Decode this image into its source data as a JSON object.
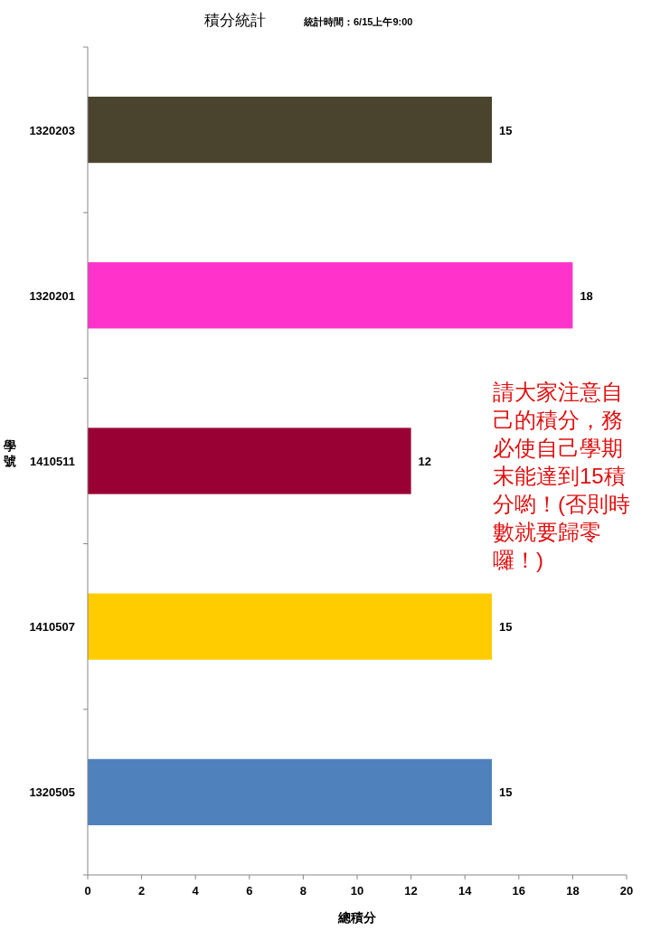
{
  "chart_data": {
    "type": "bar",
    "orientation": "horizontal",
    "title": "積分統計",
    "subtitle": "統計時間：6/15上午9:00",
    "xlabel": "總積分",
    "ylabel": "學號",
    "categories": [
      "1320203",
      "1320201",
      "1410511",
      "1410507",
      "1320505"
    ],
    "values": [
      15,
      18,
      12,
      15,
      15
    ],
    "colors": [
      "#4a432e",
      "#ff33cc",
      "#990033",
      "#ffcc00",
      "#4f81bd"
    ],
    "xlim": [
      0,
      20
    ],
    "xticks": [
      0,
      2,
      4,
      6,
      8,
      10,
      12,
      14,
      16,
      18,
      20
    ],
    "data_labels": true,
    "grid": false,
    "annotations": [
      "請大家注意自己的積分，務必使自己學期末能達到15積分喲！(否則時數就要歸零囉！)"
    ]
  }
}
